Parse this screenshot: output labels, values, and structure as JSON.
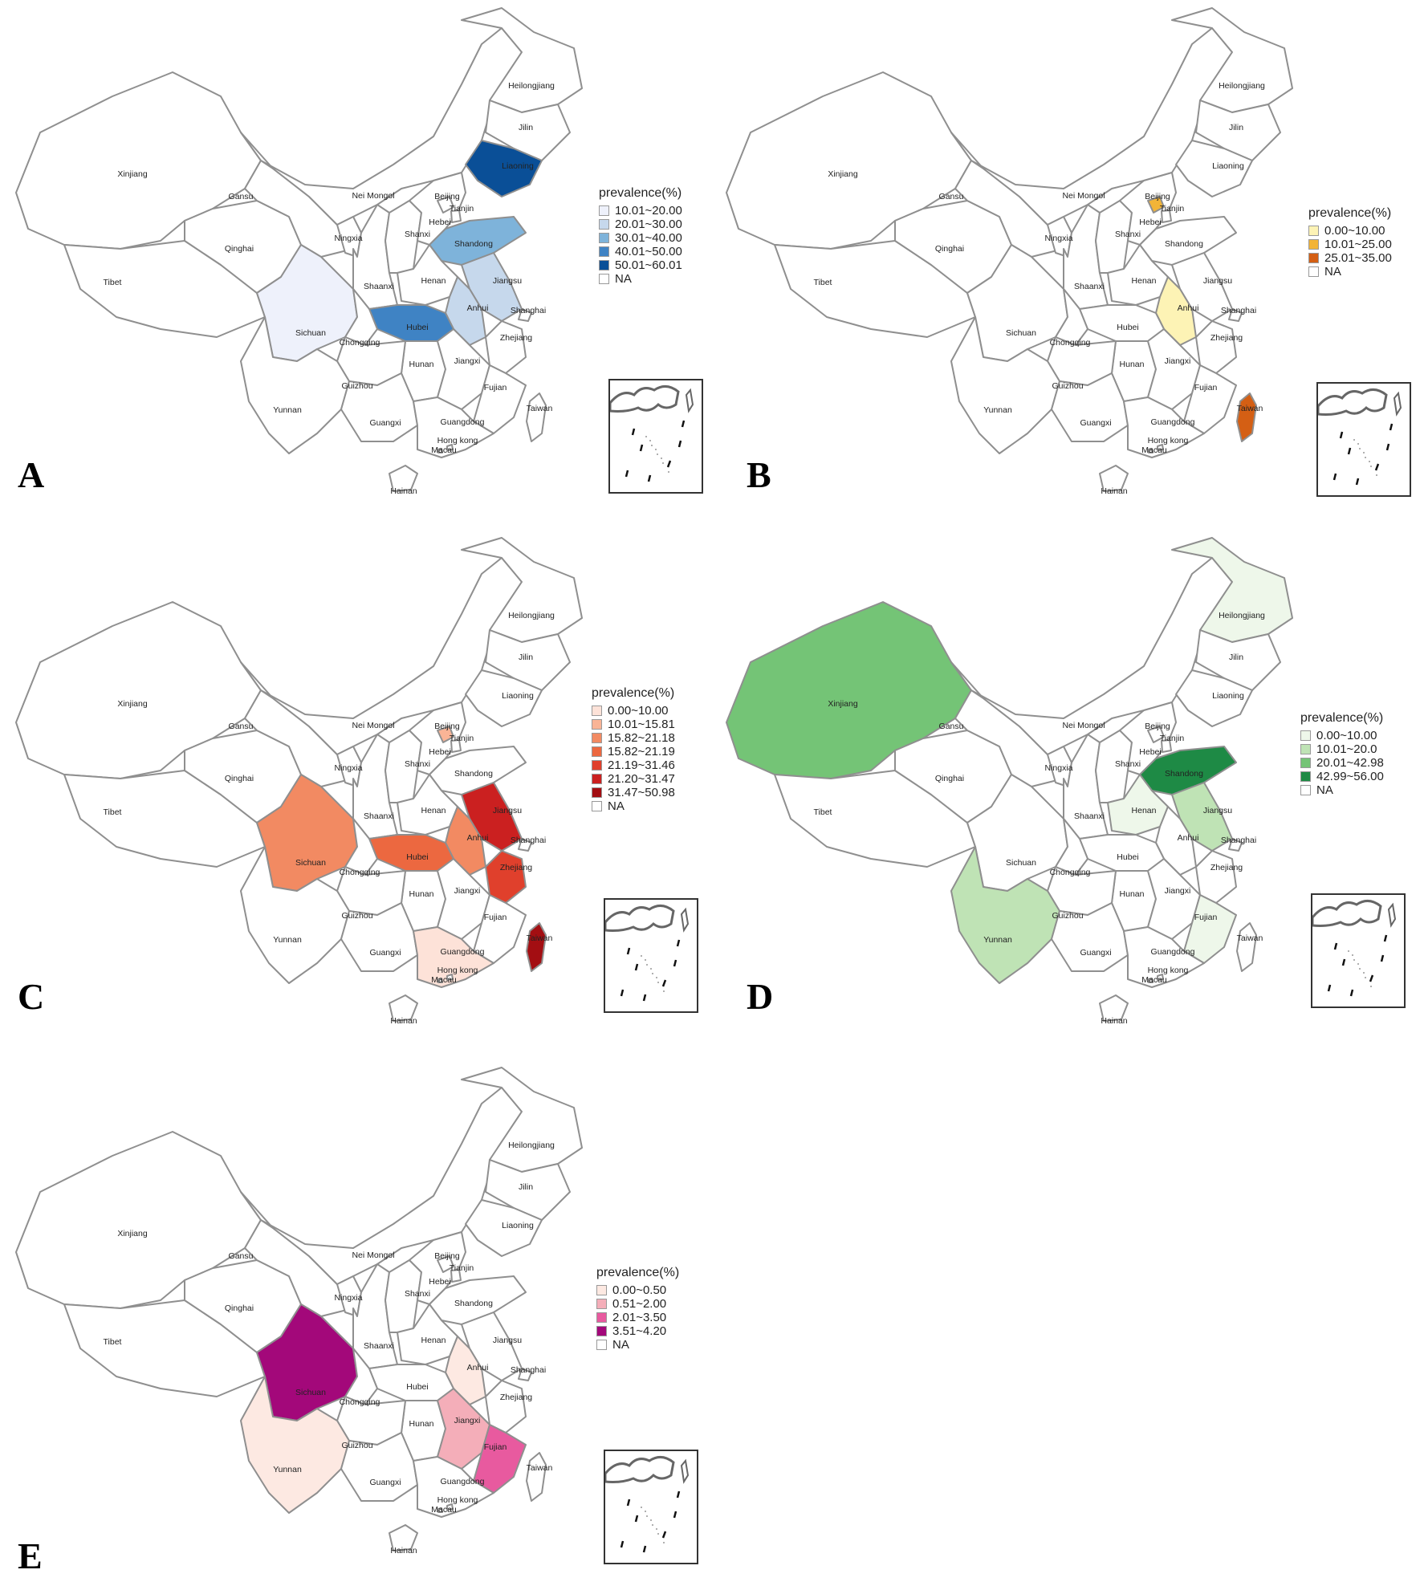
{
  "panels": [
    {
      "letter": "A",
      "legend_title": "prevalence(%)",
      "legend": [
        {
          "label": "10.01~20.00",
          "color": "#eef1fb"
        },
        {
          "label": "20.01~30.00",
          "color": "#c6d8ec"
        },
        {
          "label": "30.01~40.00",
          "color": "#7eb3da"
        },
        {
          "label": "40.01~50.00",
          "color": "#3f83c4"
        },
        {
          "label": "50.01~60.01",
          "color": "#0a4f97"
        },
        {
          "label": "NA",
          "color": "#ffffff"
        }
      ],
      "fills": {
        "Liaoning": "#0a4f97",
        "Shandong": "#7eb3da",
        "Hubei": "#3f83c4",
        "Anhui": "#c6d8ec",
        "Jiangsu": "#c6d8ec",
        "Sichuan": "#eef1fb"
      }
    },
    {
      "letter": "B",
      "legend_title": "prevalence(%)",
      "legend": [
        {
          "label": "0.00~10.00",
          "color": "#fdf3b5"
        },
        {
          "label": "10.01~25.00",
          "color": "#f2b437"
        },
        {
          "label": "25.01~35.00",
          "color": "#d45f14"
        },
        {
          "label": "NA",
          "color": "#ffffff"
        }
      ],
      "fills": {
        "Beijing": "#f2b437",
        "Anhui": "#fdf3b5",
        "Taiwan": "#d45f14"
      }
    },
    {
      "letter": "C",
      "legend_title": "prevalence(%)",
      "legend": [
        {
          "label": "0.00~10.00",
          "color": "#fde2d8"
        },
        {
          "label": "10.01~15.81",
          "color": "#f9b496"
        },
        {
          "label": "15.82~21.18",
          "color": "#f28a62"
        },
        {
          "label": "15.82~21.19",
          "color": "#ec6840"
        },
        {
          "label": "21.19~31.46",
          "color": "#e0402c"
        },
        {
          "label": "21.20~31.47",
          "color": "#cb2020"
        },
        {
          "label": "31.47~50.98",
          "color": "#a30e12"
        },
        {
          "label": "NA",
          "color": "#ffffff"
        }
      ],
      "fills": {
        "Beijing": "#f9b496",
        "Sichuan": "#f28a62",
        "Hubei": "#ec6840",
        "Anhui": "#f28a62",
        "Jiangsu": "#cb2020",
        "Zhejiang": "#e0402c",
        "Taiwan": "#a30e12",
        "Guangdong": "#fde2d8"
      }
    },
    {
      "letter": "D",
      "legend_title": "prevalence(%)",
      "legend": [
        {
          "label": "0.00~10.00",
          "color": "#eef7ea"
        },
        {
          "label": "10.01~20.0",
          "color": "#bfe3b5"
        },
        {
          "label": "20.01~42.98",
          "color": "#74c476"
        },
        {
          "label": "42.99~56.00",
          "color": "#1e8a45"
        },
        {
          "label": "NA",
          "color": "#ffffff"
        }
      ],
      "fills": {
        "Xinjiang": "#74c476",
        "Heilongjiang": "#eef7ea",
        "Shandong": "#1e8a45",
        "Henan": "#eef7ea",
        "Jiangsu": "#bfe3b5",
        "Yunnan": "#bfe3b5",
        "Fujian": "#eef7ea"
      }
    },
    {
      "letter": "E",
      "legend_title": "prevalence(%)",
      "legend": [
        {
          "label": "0.00~0.50",
          "color": "#fde9e2"
        },
        {
          "label": "0.51~2.00",
          "color": "#f4aeb9"
        },
        {
          "label": "2.01~3.50",
          "color": "#e85a9f"
        },
        {
          "label": "3.51~4.20",
          "color": "#a3087a"
        },
        {
          "label": "NA",
          "color": "#ffffff"
        }
      ],
      "fills": {
        "Sichuan": "#a3087a",
        "Yunnan": "#fde9e2",
        "Anhui": "#fde9e2",
        "Jiangxi": "#f4aeb9",
        "Fujian": "#e85a9f"
      }
    }
  ],
  "province_labels": {
    "Heilongjiang": "Heilongjiang",
    "Jilin": "Jilin",
    "Liaoning": "Liaoning",
    "Xinjiang": "Xinjiang",
    "Gansu": "Gansu",
    "Nei Mongol": "Nei Mongol",
    "Beijing": "Beijing",
    "Tianjin": "Tianjin",
    "Hebei": "Hebei",
    "Ningxia": "Ningxia",
    "Shanxi": "Shanxi",
    "Shandong": "Shandong",
    "Qinghai": "Qinghai",
    "Tibet": "Tibet",
    "Shaanxi": "Shaanxi",
    "Henan": "Henan",
    "Jiangsu": "Jiangsu",
    "Anhui": "Anhui",
    "Shanghai": "Shanghai",
    "Sichuan": "Sichuan",
    "Hubei": "Hubei",
    "Chongqing": "Chongqing",
    "Zhejiang": "Zhejiang",
    "Hunan": "Hunan",
    "Jiangxi": "Jiangxi",
    "Guizhou": "Guizhou",
    "Fujian": "Fujian",
    "Yunnan": "Yunnan",
    "Taiwan": "Taiwan",
    "Guangxi": "Guangxi",
    "Guangdong": "Guangdong",
    "Hong kong": "Hong kong",
    "Macau": "Macau",
    "Hainan": "Hainan"
  }
}
